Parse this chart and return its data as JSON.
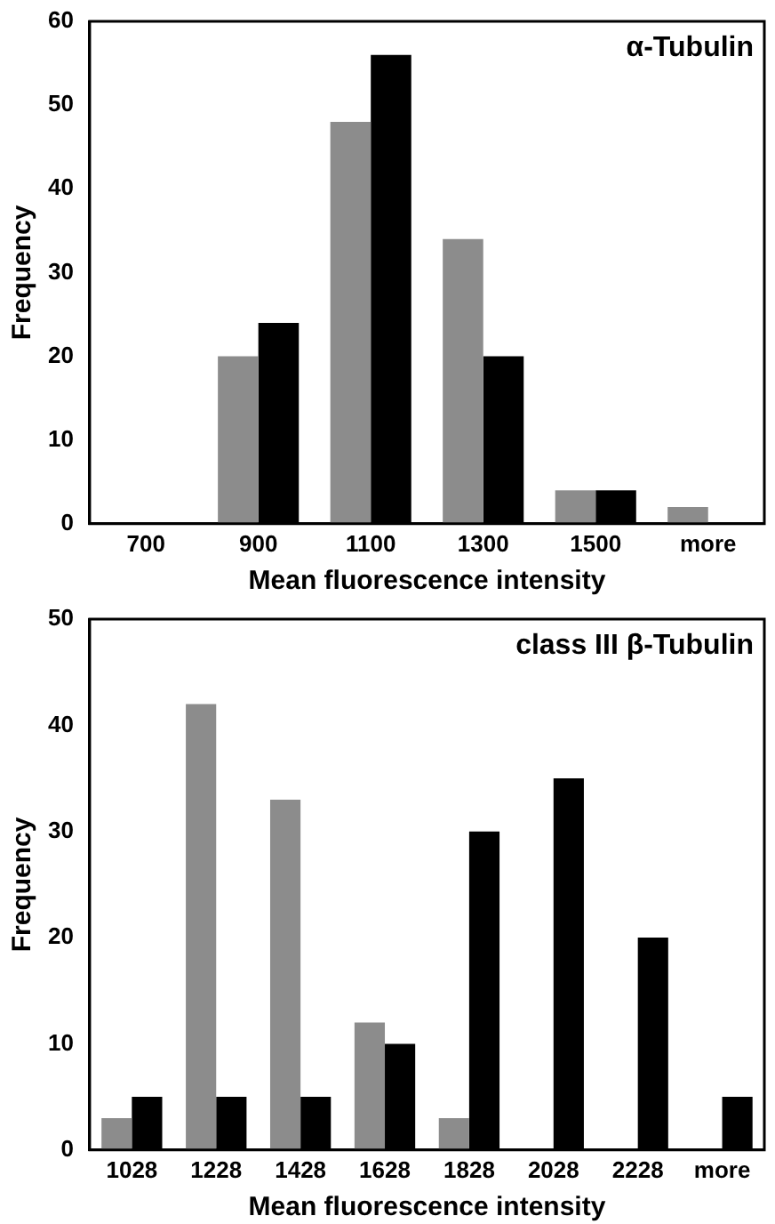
{
  "chart_data": [
    {
      "type": "bar",
      "title": "α-Tubulin",
      "xlabel": "Mean fluorescence intensity",
      "ylabel": "Frequency",
      "categories": [
        "700",
        "900",
        "1100",
        "1300",
        "1500",
        "more"
      ],
      "series": [
        {
          "color": "#8c8c8c",
          "values": [
            0,
            20,
            48,
            34,
            4,
            2
          ]
        },
        {
          "color": "#000000",
          "values": [
            0,
            24,
            56,
            20,
            4,
            0
          ]
        }
      ],
      "ylim": [
        0,
        60
      ],
      "yticks": [
        0,
        10,
        20,
        30,
        40,
        50,
        60
      ],
      "grid": false,
      "legend": false
    },
    {
      "type": "bar",
      "title": "class III β-Tubulin",
      "xlabel": "Mean fluorescence intensity",
      "ylabel": "Frequency",
      "categories": [
        "1028",
        "1228",
        "1428",
        "1628",
        "1828",
        "2028",
        "2228",
        "more"
      ],
      "series": [
        {
          "color": "#8c8c8c",
          "values": [
            3,
            42,
            33,
            12,
            3,
            0,
            0,
            0
          ]
        },
        {
          "color": "#000000",
          "values": [
            5,
            5,
            5,
            10,
            30,
            35,
            20,
            5
          ]
        }
      ],
      "ylim": [
        0,
        50
      ],
      "yticks": [
        0,
        10,
        20,
        30,
        40,
        50
      ],
      "grid": false,
      "legend": false
    }
  ]
}
